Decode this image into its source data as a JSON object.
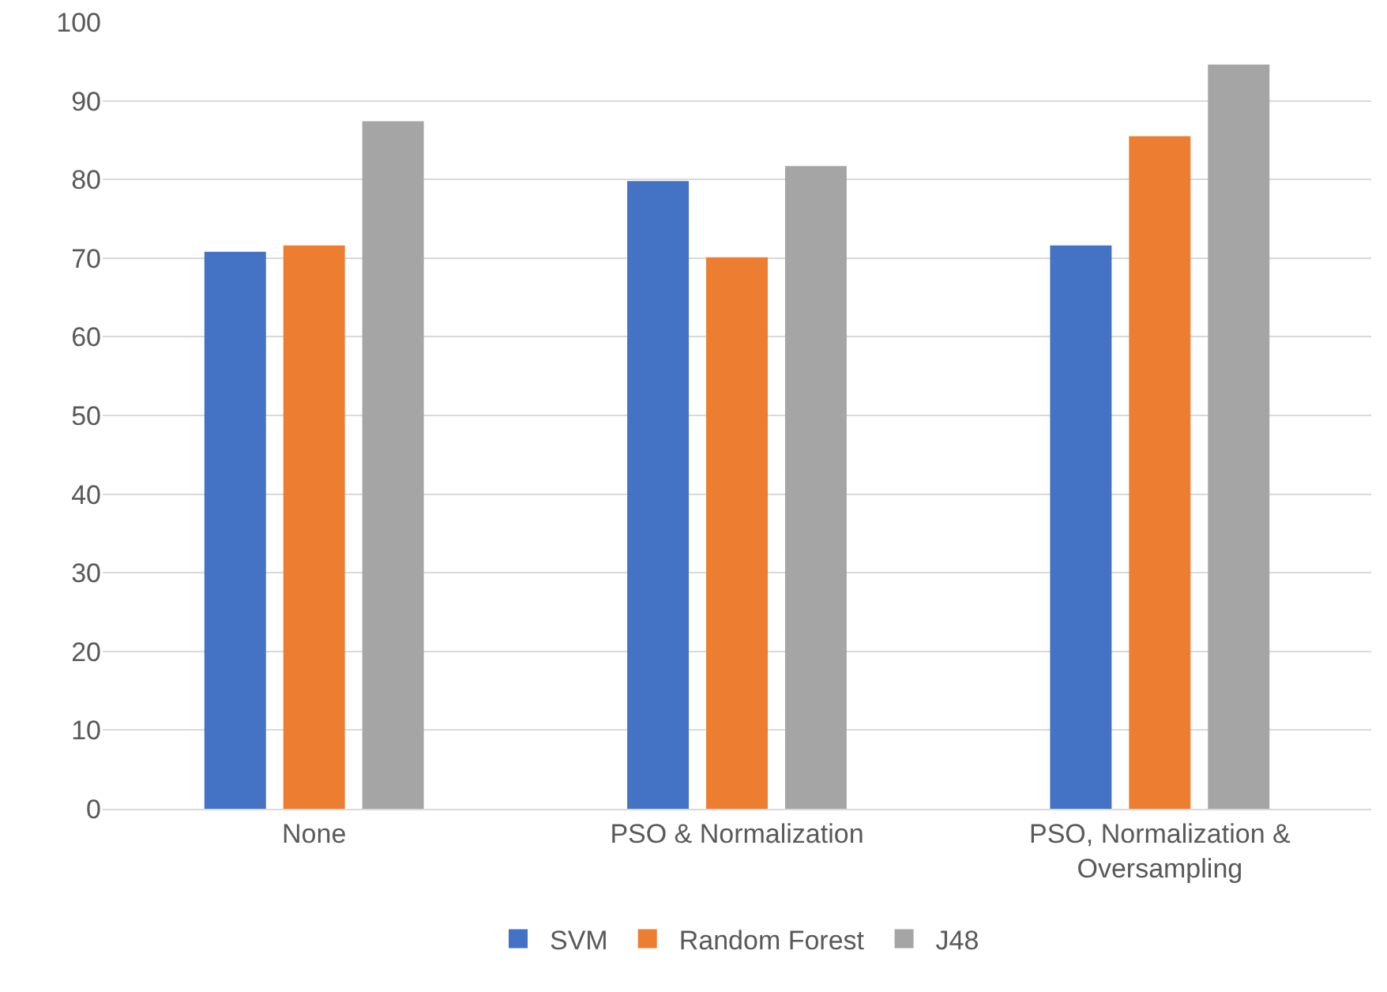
{
  "chart_data": {
    "type": "bar",
    "categories": [
      "None",
      "PSO & Normalization",
      "PSO, Normalization &\nOversampling"
    ],
    "series": [
      {
        "name": "SVM",
        "color": "#4472c4",
        "values": [
          70.8,
          79.8,
          71.6
        ]
      },
      {
        "name": "Random Forest",
        "color": "#ed7d31",
        "values": [
          71.6,
          70.1,
          85.5
        ]
      },
      {
        "name": "J48",
        "color": "#a5a5a5",
        "values": [
          87.4,
          81.7,
          94.6
        ]
      }
    ],
    "ylim": [
      0,
      100
    ],
    "yticks": [
      0,
      10,
      20,
      30,
      40,
      50,
      60,
      70,
      80,
      90,
      100
    ],
    "grid": "y",
    "legend": "bottom"
  }
}
